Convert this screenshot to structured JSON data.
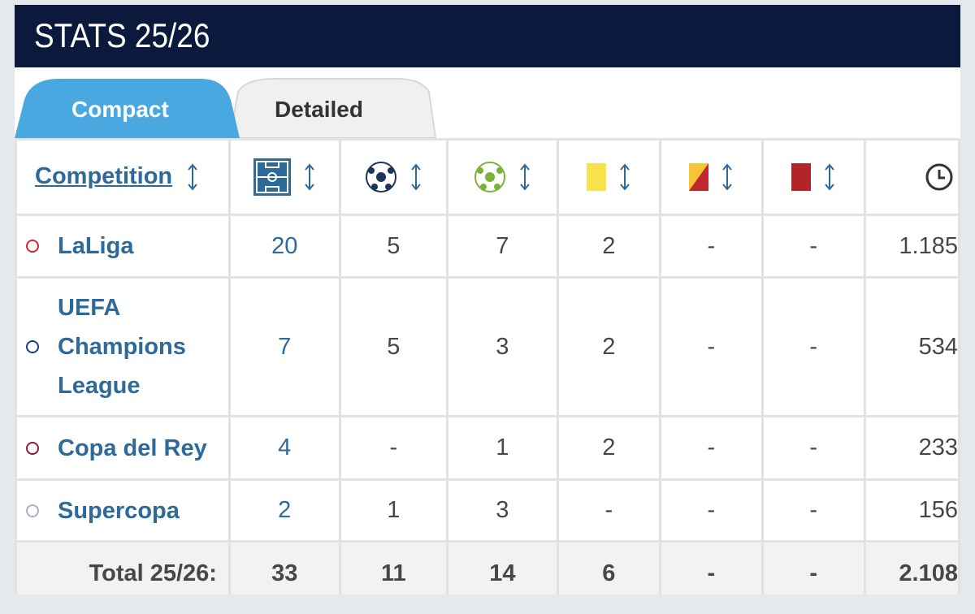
{
  "header": {
    "title": "STATS 25/26"
  },
  "tabs": [
    "Compact",
    "Detailed"
  ],
  "table": {
    "header": "Competition",
    "rows": [
      [
        "LaLiga",
        "20",
        "5",
        "7",
        "2",
        "-",
        "-",
        "1.185"
      ],
      [
        "UEFA Champions League",
        "7",
        "5",
        "3",
        "2",
        "-",
        "-",
        "534"
      ],
      [
        "Copa del Rey",
        "4",
        "-",
        "1",
        "2",
        "-",
        "-",
        "233"
      ],
      [
        "Supercopa",
        "2",
        "1",
        "3",
        "-",
        "-",
        "-",
        "156"
      ]
    ],
    "total": [
      "Total 25/26:",
      "33",
      "11",
      "14",
      "6",
      "-",
      "-",
      "2.108"
    ]
  }
}
